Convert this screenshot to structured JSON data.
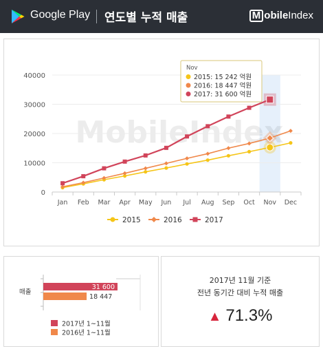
{
  "header": {
    "brand": "Google Play",
    "title": "연도별 누적 매출",
    "logo_m": "M",
    "logo_bold": "obile",
    "logo_light": "Index"
  },
  "colors": {
    "header_bg": "#2b2f36",
    "s2015": "#f5c518",
    "s2016": "#f0884a",
    "s2017": "#d1445a"
  },
  "chart_data": {
    "type": "line",
    "categories": [
      "Jan",
      "Feb",
      "Mar",
      "Apr",
      "May",
      "Jun",
      "Jul",
      "Aug",
      "Sep",
      "Oct",
      "Nov",
      "Dec"
    ],
    "ylim": [
      0,
      40000
    ],
    "yticks": [
      "0",
      "10000",
      "20000",
      "30000",
      "40000"
    ],
    "series": [
      {
        "name": "2015",
        "values": [
          1500,
          2800,
          4200,
          5500,
          6900,
          8200,
          9600,
          10900,
          12400,
          13800,
          15242,
          16800
        ]
      },
      {
        "name": "2016",
        "values": [
          1800,
          3200,
          4800,
          6400,
          8100,
          9800,
          11500,
          13100,
          15000,
          16600,
          18447,
          20900
        ]
      },
      {
        "name": "2017",
        "values": [
          3000,
          5400,
          8100,
          10400,
          12500,
          15100,
          19000,
          22500,
          25800,
          28800,
          31600,
          null
        ]
      }
    ],
    "highlight_index": 10,
    "watermark": "MobileIndex",
    "tooltip": {
      "title": "Nov",
      "lines": [
        "2015: 15 242 억원",
        "2016: 18 447 억원",
        "2017: 31 600 억원"
      ]
    },
    "legend": [
      "2015",
      "2016",
      "2017"
    ]
  },
  "bar_chart": {
    "category": "매출",
    "bars": [
      {
        "value": 31600,
        "label": "31 600"
      },
      {
        "value": 18447,
        "label": "18 447"
      }
    ],
    "legend": [
      "2017년 1~11월",
      "2016년 1~11월"
    ]
  },
  "summary": {
    "line1": "2017년 11월 기준",
    "line2": "전년 동기간 대비 누적 매출",
    "arrow": "▲",
    "pct": "71.3%"
  }
}
